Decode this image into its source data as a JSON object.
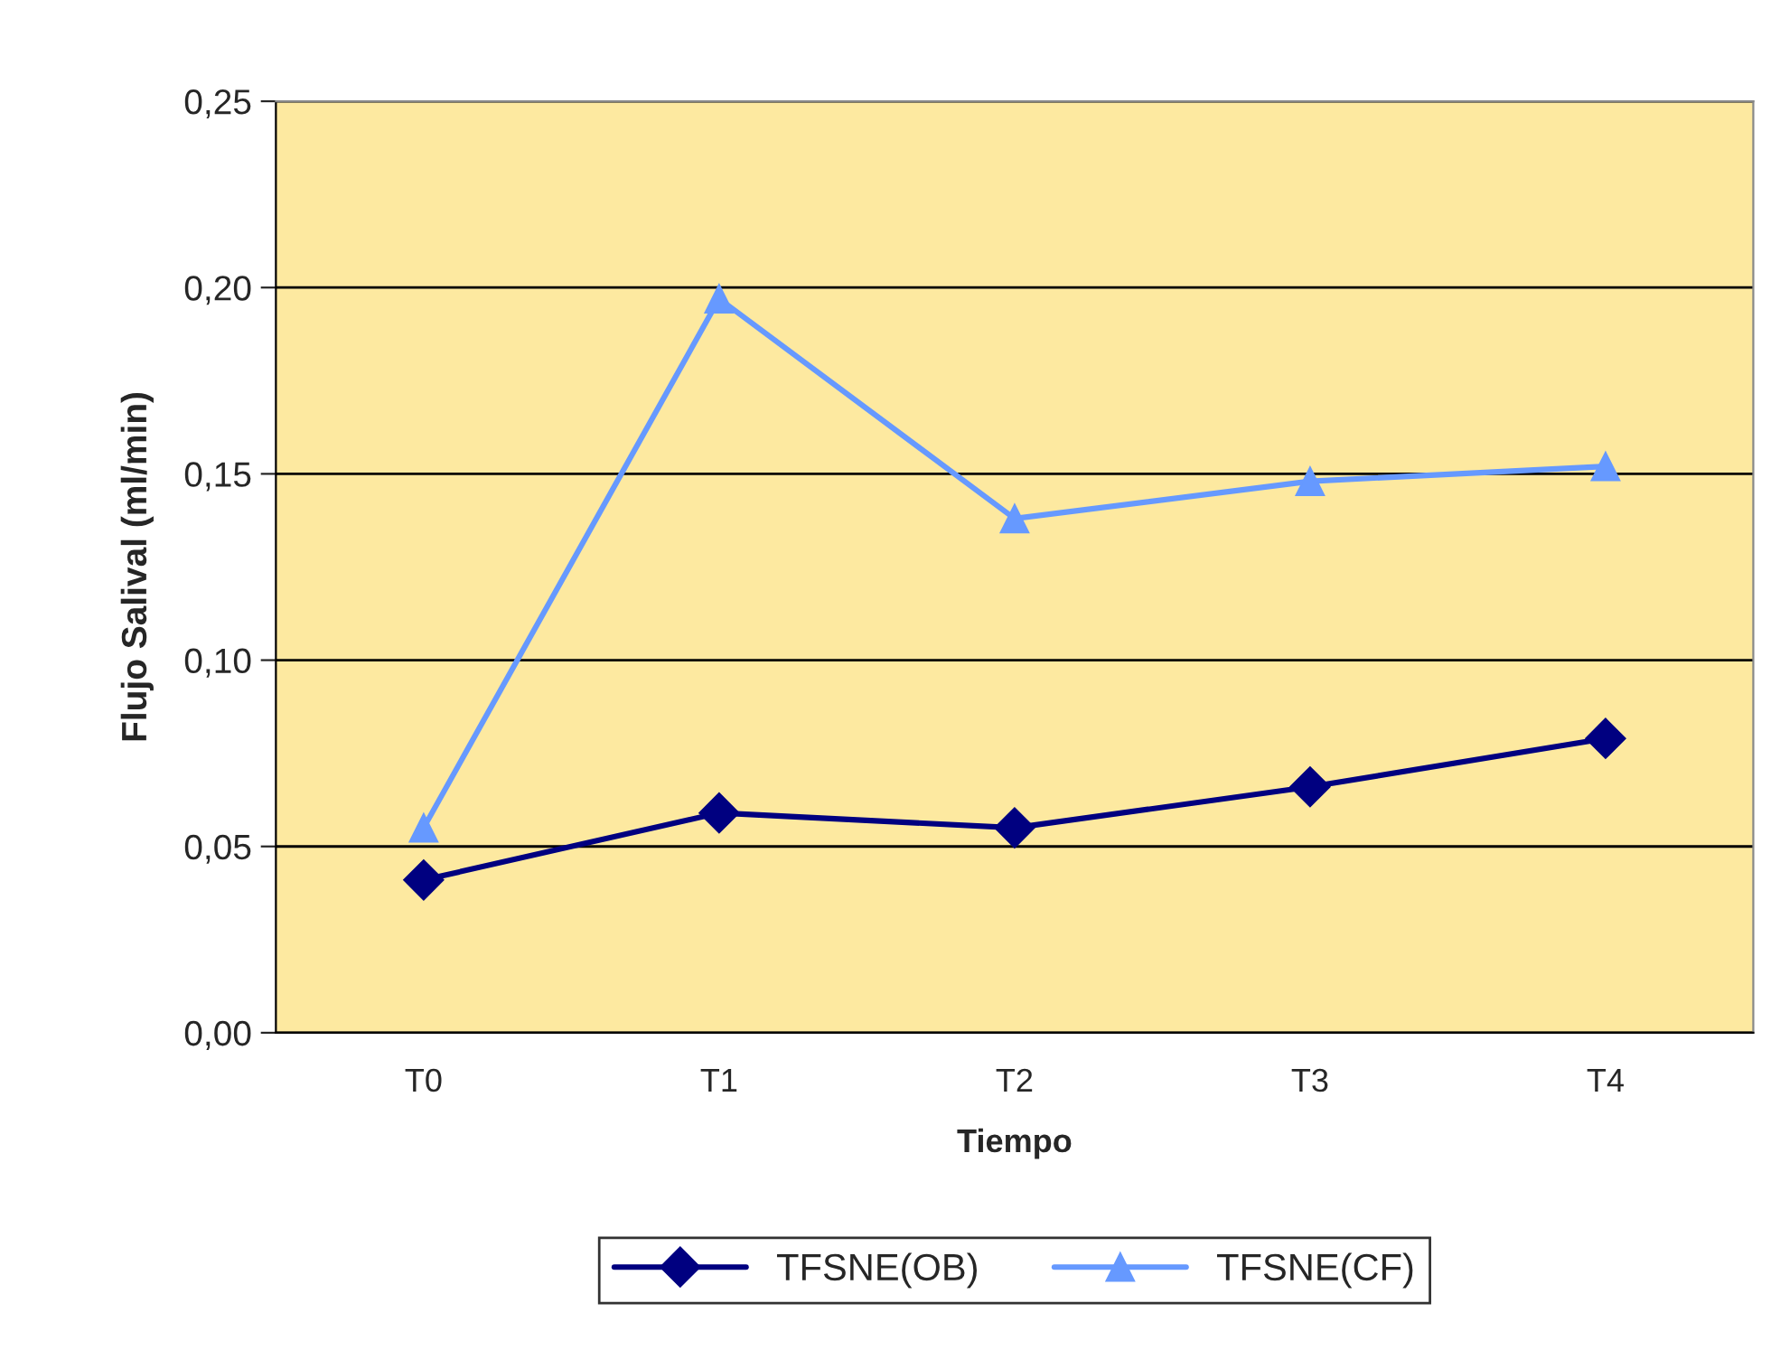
{
  "chart_data": {
    "type": "line",
    "xlabel": "Tiempo",
    "ylabel": "Flujo Salival (ml/min)",
    "categories": [
      "T0",
      "T1",
      "T2",
      "T3",
      "T4"
    ],
    "series": [
      {
        "name": "TFSNE(OB)",
        "color": "#000080",
        "marker": "diamond",
        "values": [
          0.041,
          0.059,
          0.055,
          0.066,
          0.079
        ]
      },
      {
        "name": "TFSNE(CF)",
        "color": "#6699ff",
        "marker": "triangle",
        "values": [
          0.055,
          0.197,
          0.138,
          0.148,
          0.152
        ]
      }
    ],
    "ylim": [
      0,
      0.25
    ],
    "yticks": [
      {
        "value": 0,
        "label": "0,00"
      },
      {
        "value": 0.05,
        "label": "0,05"
      },
      {
        "value": 0.1,
        "label": "0,10"
      },
      {
        "value": 0.15,
        "label": "0,15"
      },
      {
        "value": 0.2,
        "label": "0,20"
      },
      {
        "value": 0.25,
        "label": "0,25"
      }
    ],
    "grid": "y",
    "legend": "bottom",
    "line_style": "solid"
  }
}
